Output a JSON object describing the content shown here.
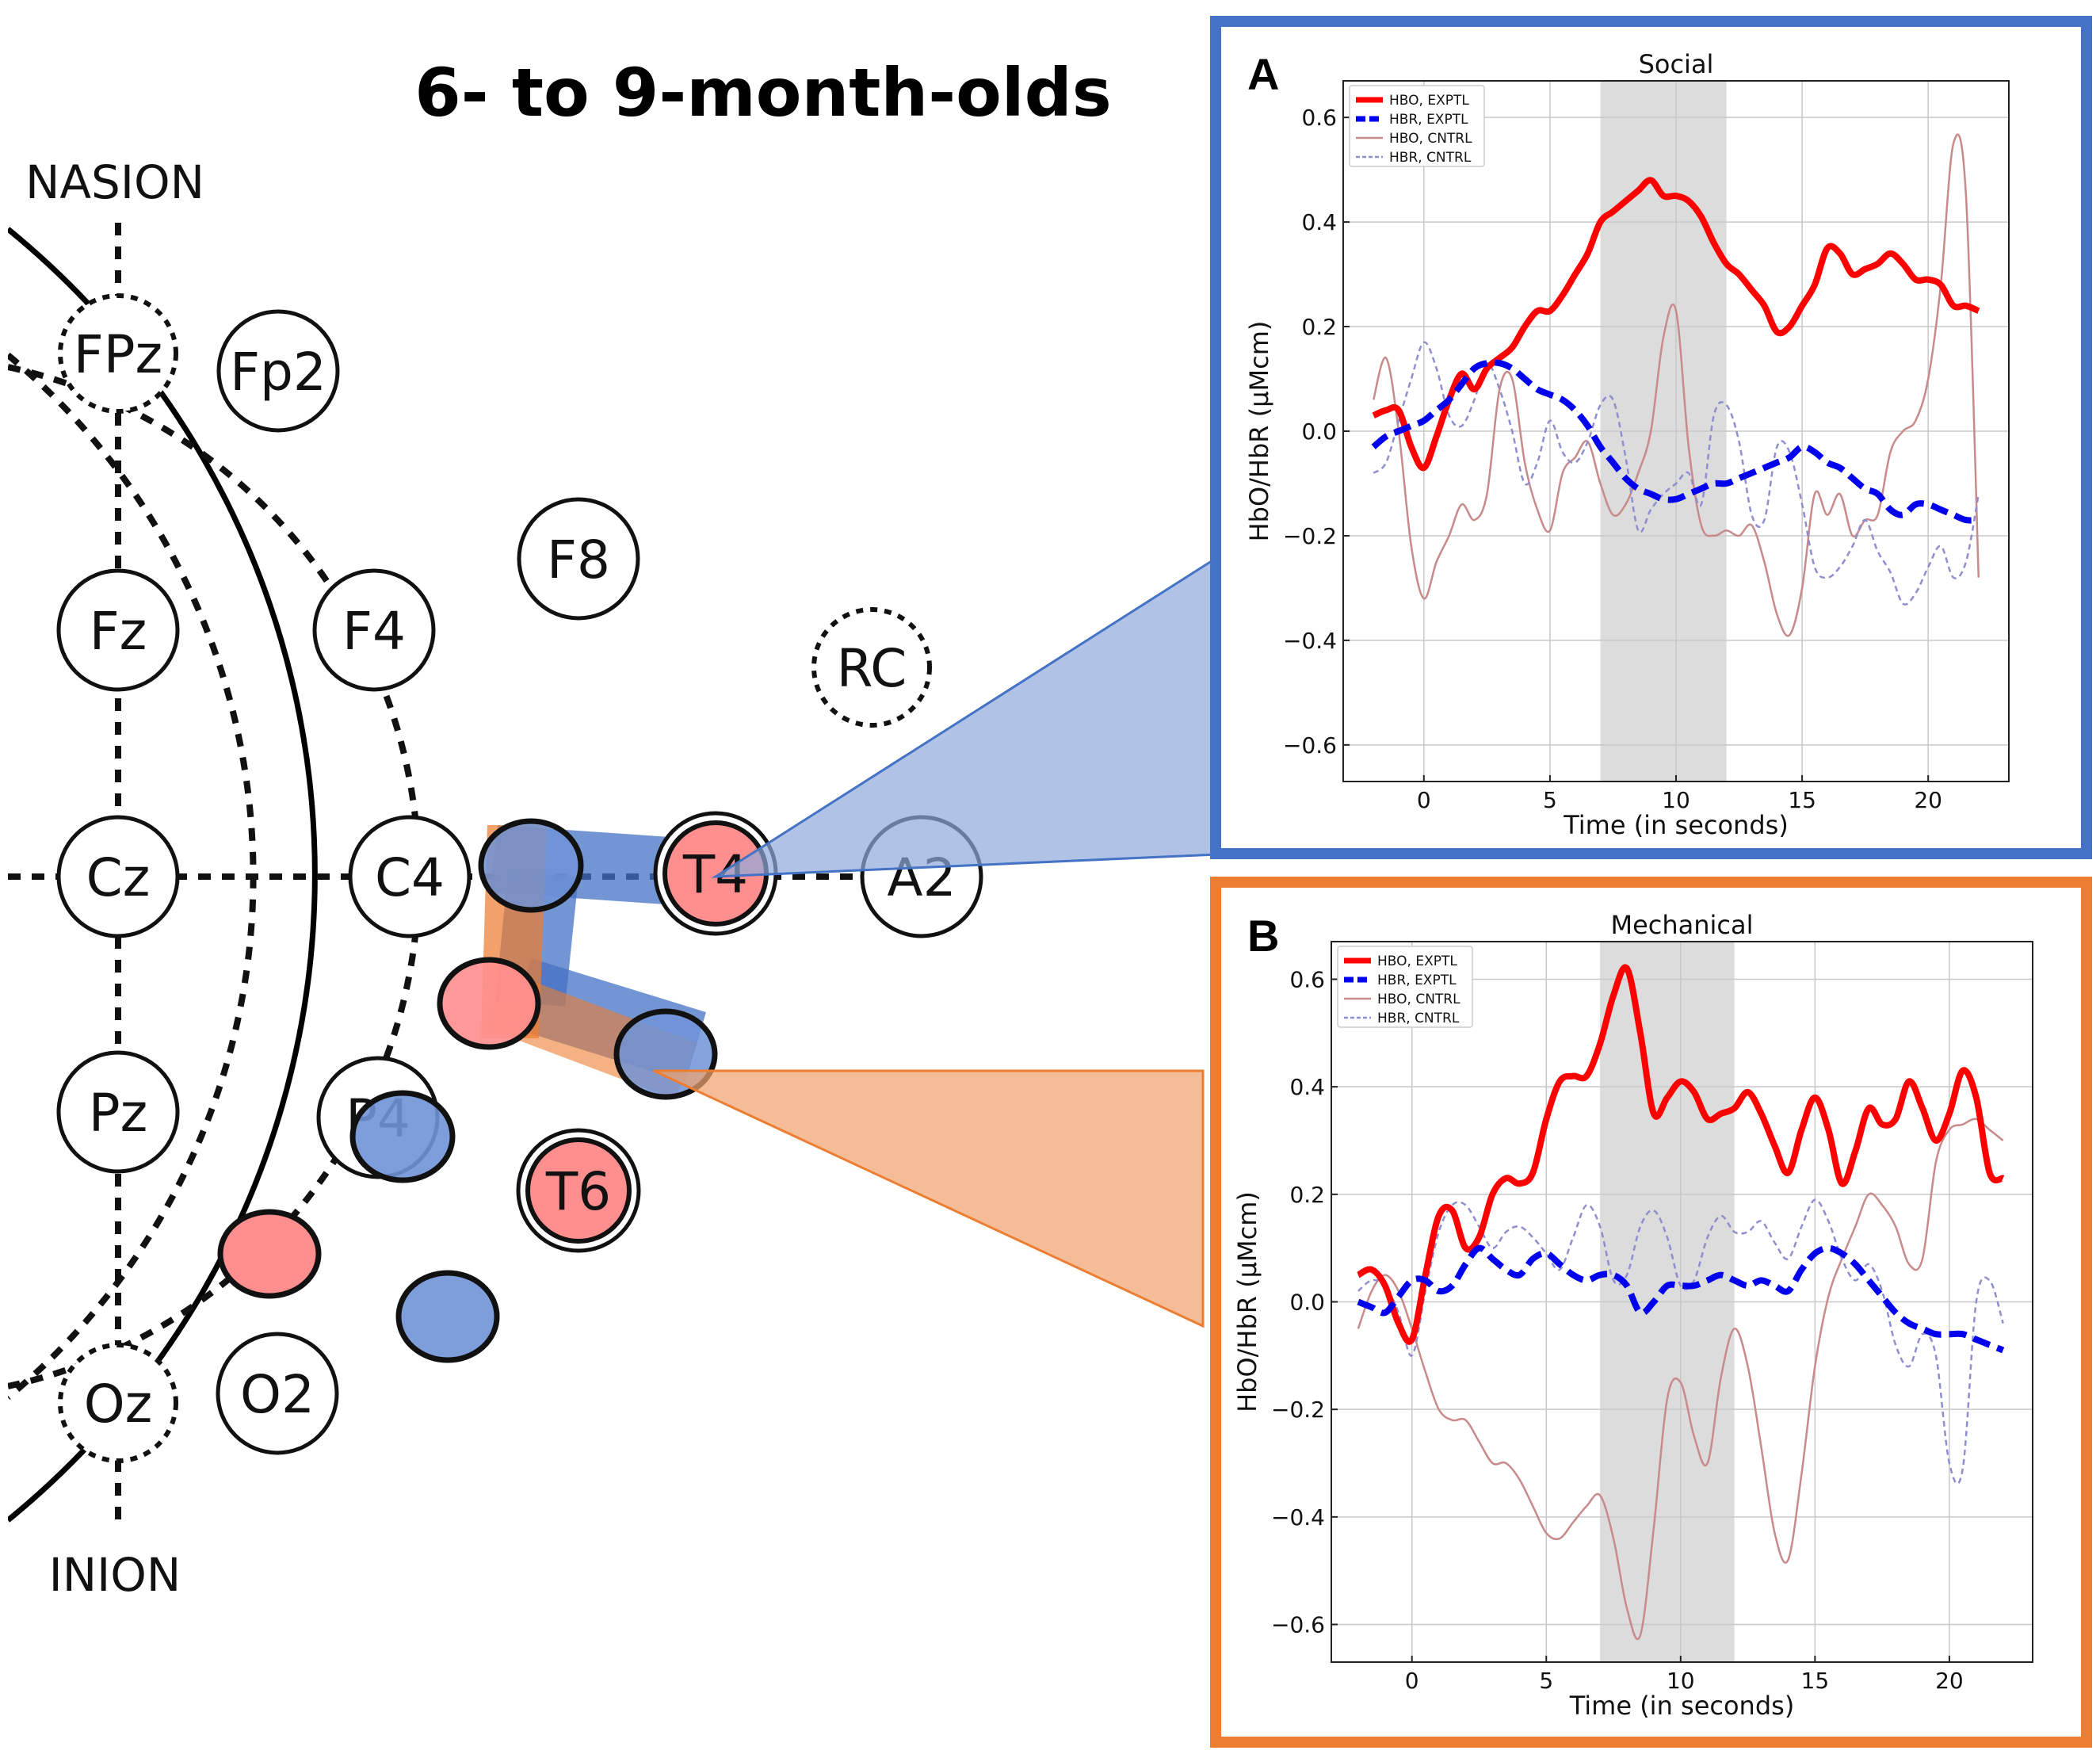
{
  "title": "6- to 9-month-olds",
  "head": {
    "nasion_label": "NASION",
    "inion_label": "INION",
    "electrodes": [
      {
        "id": "FPz",
        "label": "FPz",
        "dashed": true
      },
      {
        "id": "Fp2",
        "label": "Fp2",
        "dashed": false
      },
      {
        "id": "F8",
        "label": "F8",
        "dashed": false
      },
      {
        "id": "Fz",
        "label": "Fz",
        "dashed": false
      },
      {
        "id": "F4",
        "label": "F4",
        "dashed": false
      },
      {
        "id": "RC",
        "label": "RC",
        "dashed": true
      },
      {
        "id": "Cz",
        "label": "Cz",
        "dashed": false
      },
      {
        "id": "C4",
        "label": "C4",
        "dashed": false
      },
      {
        "id": "T4",
        "label": "T4",
        "dashed": false
      },
      {
        "id": "A2",
        "label": "A2",
        "dashed": false
      },
      {
        "id": "Pz",
        "label": "Pz",
        "dashed": false
      },
      {
        "id": "P4",
        "label": "P4",
        "dashed": false
      },
      {
        "id": "T6",
        "label": "T6",
        "dashed": false
      },
      {
        "id": "Oz",
        "label": "Oz",
        "dashed": true
      },
      {
        "id": "O2",
        "label": "O2",
        "dashed": false
      }
    ]
  },
  "colors": {
    "panel_a_border": "#4472c4",
    "panel_b_border": "#ed7d31",
    "hbo": "#ff0000",
    "hbr": "#0000ee",
    "hbo_ctrl": "#c88a8a",
    "hbr_ctrl": "#8f8fd0",
    "shade": "#dcdcdc",
    "source": "#ff8f8f",
    "detector": "#6f93d6"
  },
  "chart_data": [
    {
      "panel": "A",
      "type": "line",
      "title": "Social",
      "xlabel": "Time (in seconds)",
      "ylabel": "HbO/HbR (μMcm)",
      "xlim": [
        -3.2,
        23.2
      ],
      "ylim": [
        -0.67,
        0.67
      ],
      "xticks": [
        0,
        5,
        10,
        15,
        20
      ],
      "yticks": [
        -0.6,
        -0.4,
        -0.2,
        0.0,
        0.2,
        0.4,
        0.6
      ],
      "ytick_labels": [
        "−0.6",
        "−0.4",
        "−0.2",
        "0.0",
        "0.2",
        "0.4",
        "0.6"
      ],
      "grid": true,
      "shaded_interval": [
        7,
        12
      ],
      "legend_position": "top-left",
      "series": [
        {
          "name": "HBO, EXPTL",
          "style": "solid-thick",
          "x": [
            -2,
            -1.5,
            -1,
            -0.5,
            0,
            0.5,
            1,
            1.5,
            2,
            2.5,
            3,
            3.5,
            4,
            4.5,
            5,
            5.5,
            6,
            6.5,
            7,
            7.5,
            8,
            8.5,
            9,
            9.5,
            10,
            10.5,
            11,
            11.5,
            12,
            12.5,
            13,
            13.5,
            14,
            14.5,
            15,
            15.5,
            16,
            16.5,
            17,
            17.5,
            18,
            18.5,
            19,
            19.5,
            20,
            20.5,
            21,
            21.5,
            22
          ],
          "y": [
            0.03,
            0.04,
            0.04,
            -0.03,
            -0.07,
            -0.01,
            0.06,
            0.11,
            0.08,
            0.12,
            0.14,
            0.16,
            0.2,
            0.23,
            0.23,
            0.26,
            0.3,
            0.34,
            0.4,
            0.42,
            0.44,
            0.46,
            0.48,
            0.45,
            0.45,
            0.44,
            0.41,
            0.36,
            0.32,
            0.3,
            0.27,
            0.24,
            0.19,
            0.2,
            0.24,
            0.28,
            0.35,
            0.34,
            0.3,
            0.31,
            0.32,
            0.34,
            0.32,
            0.29,
            0.29,
            0.28,
            0.24,
            0.24,
            0.23
          ]
        },
        {
          "name": "HBR, EXPTL",
          "style": "dashed-thick",
          "x": [
            -2,
            -1.5,
            -1,
            -0.5,
            0,
            0.5,
            1,
            1.5,
            2,
            2.5,
            3,
            3.5,
            4,
            4.5,
            5,
            5.5,
            6,
            6.5,
            7,
            7.5,
            8,
            8.5,
            9,
            9.5,
            10,
            10.5,
            11,
            11.5,
            12,
            12.5,
            13,
            13.5,
            14,
            14.5,
            15,
            15.5,
            16,
            16.5,
            17,
            17.5,
            18,
            18.5,
            19,
            19.5,
            20,
            20.5,
            21,
            21.5,
            22
          ],
          "y": [
            -0.03,
            -0.01,
            0.0,
            0.01,
            0.02,
            0.04,
            0.06,
            0.09,
            0.12,
            0.13,
            0.13,
            0.12,
            0.1,
            0.08,
            0.07,
            0.06,
            0.04,
            0.01,
            -0.03,
            -0.06,
            -0.09,
            -0.11,
            -0.12,
            -0.13,
            -0.13,
            -0.12,
            -0.11,
            -0.1,
            -0.1,
            -0.09,
            -0.08,
            -0.07,
            -0.06,
            -0.05,
            -0.03,
            -0.04,
            -0.06,
            -0.07,
            -0.09,
            -0.11,
            -0.12,
            -0.15,
            -0.16,
            -0.14,
            -0.14,
            -0.15,
            -0.16,
            -0.17,
            -0.17
          ]
        },
        {
          "name": "HBO, CNTRL",
          "style": "solid-thin",
          "x": [
            -2,
            -1.5,
            -1,
            -0.5,
            0,
            0.5,
            1,
            1.5,
            2,
            2.5,
            3,
            3.5,
            4,
            4.5,
            5,
            5.5,
            6,
            6.5,
            7,
            7.5,
            8,
            8.5,
            9,
            9.5,
            10,
            10.5,
            11,
            11.5,
            12,
            12.5,
            13,
            13.5,
            14,
            14.5,
            15,
            15.5,
            16,
            16.5,
            17,
            17.5,
            18,
            18.5,
            19,
            19.5,
            20,
            20.5,
            21,
            21.5,
            22
          ],
          "y": [
            0.06,
            0.14,
            0.0,
            -0.22,
            -0.32,
            -0.25,
            -0.2,
            -0.14,
            -0.17,
            -0.12,
            0.08,
            0.1,
            -0.06,
            -0.15,
            -0.19,
            -0.08,
            -0.05,
            -0.02,
            -0.1,
            -0.16,
            -0.14,
            -0.08,
            0.0,
            0.18,
            0.23,
            -0.03,
            -0.18,
            -0.2,
            -0.19,
            -0.2,
            -0.18,
            -0.25,
            -0.35,
            -0.39,
            -0.3,
            -0.12,
            -0.16,
            -0.12,
            -0.2,
            -0.17,
            -0.16,
            -0.04,
            0.0,
            0.02,
            0.1,
            0.28,
            0.55,
            0.45,
            -0.28
          ]
        },
        {
          "name": "HBR, CNTRL",
          "style": "dashed-thin",
          "x": [
            -2,
            -1.5,
            -1,
            -0.5,
            0,
            0.5,
            1,
            1.5,
            2,
            2.5,
            3,
            3.5,
            4,
            4.5,
            5,
            5.5,
            6,
            6.5,
            7,
            7.5,
            8,
            8.5,
            9,
            9.5,
            10,
            10.5,
            11,
            11.5,
            12,
            12.5,
            13,
            13.5,
            14,
            14.5,
            15,
            15.5,
            16,
            16.5,
            17,
            17.5,
            18,
            18.5,
            19,
            19.5,
            20,
            20.5,
            21,
            21.5,
            22
          ],
          "y": [
            -0.08,
            -0.06,
            0.02,
            0.1,
            0.17,
            0.12,
            0.03,
            0.01,
            0.06,
            0.13,
            0.08,
            0.0,
            -0.1,
            -0.06,
            0.02,
            -0.04,
            -0.06,
            -0.02,
            0.05,
            0.06,
            -0.05,
            -0.19,
            -0.15,
            -0.12,
            -0.1,
            -0.08,
            -0.14,
            0.03,
            0.05,
            -0.02,
            -0.16,
            -0.17,
            -0.03,
            -0.04,
            -0.14,
            -0.26,
            -0.28,
            -0.26,
            -0.22,
            -0.17,
            -0.23,
            -0.27,
            -0.33,
            -0.31,
            -0.26,
            -0.22,
            -0.28,
            -0.25,
            -0.12
          ]
        }
      ]
    },
    {
      "panel": "B",
      "type": "line",
      "title": "Mechanical",
      "xlabel": "Time (in seconds)",
      "ylabel": "HbO/HbR (μMcm)",
      "xlim": [
        -3.0,
        23.1
      ],
      "ylim": [
        -0.67,
        0.67
      ],
      "xticks": [
        0,
        5,
        10,
        15,
        20
      ],
      "yticks": [
        -0.6,
        -0.4,
        -0.2,
        0.0,
        0.2,
        0.4,
        0.6
      ],
      "ytick_labels": [
        "−0.6",
        "−0.4",
        "−0.2",
        "0.0",
        "0.2",
        "0.4",
        "0.6"
      ],
      "grid": true,
      "shaded_interval": [
        7,
        12
      ],
      "legend_position": "top-left",
      "series": [
        {
          "name": "HBO, EXPTL",
          "style": "solid-thick",
          "x": [
            -2,
            -1.5,
            -1,
            -0.5,
            0,
            0.5,
            1,
            1.5,
            2,
            2.5,
            3,
            3.5,
            4,
            4.5,
            5,
            5.5,
            6,
            6.5,
            7,
            7.5,
            8,
            8.5,
            9,
            9.5,
            10,
            10.5,
            11,
            11.5,
            12,
            12.5,
            13,
            13.5,
            14,
            14.5,
            15,
            15.5,
            16,
            16.5,
            17,
            17.5,
            18,
            18.5,
            19,
            19.5,
            20,
            20.5,
            21,
            21.5,
            22
          ],
          "y": [
            0.05,
            0.06,
            0.03,
            -0.04,
            -0.07,
            0.05,
            0.16,
            0.17,
            0.1,
            0.12,
            0.2,
            0.23,
            0.22,
            0.24,
            0.34,
            0.41,
            0.42,
            0.42,
            0.48,
            0.57,
            0.62,
            0.5,
            0.35,
            0.38,
            0.41,
            0.39,
            0.34,
            0.35,
            0.36,
            0.39,
            0.35,
            0.29,
            0.24,
            0.32,
            0.38,
            0.32,
            0.22,
            0.28,
            0.36,
            0.33,
            0.34,
            0.41,
            0.36,
            0.3,
            0.35,
            0.43,
            0.38,
            0.24,
            0.23
          ]
        },
        {
          "name": "HBR, EXPTL",
          "style": "dashed-thick",
          "x": [
            -2,
            -1.5,
            -1,
            -0.5,
            0,
            0.5,
            1,
            1.5,
            2,
            2.5,
            3,
            3.5,
            4,
            4.5,
            5,
            5.5,
            6,
            6.5,
            7,
            7.5,
            8,
            8.5,
            9,
            9.5,
            10,
            10.5,
            11,
            11.5,
            12,
            12.5,
            13,
            13.5,
            14,
            14.5,
            15,
            15.5,
            16,
            16.5,
            17,
            17.5,
            18,
            18.5,
            19,
            19.5,
            20,
            20.5,
            21,
            21.5,
            22
          ],
          "y": [
            0.0,
            -0.01,
            -0.02,
            0.01,
            0.04,
            0.04,
            0.02,
            0.03,
            0.07,
            0.1,
            0.08,
            0.06,
            0.05,
            0.08,
            0.09,
            0.07,
            0.05,
            0.04,
            0.05,
            0.05,
            0.03,
            -0.02,
            0.0,
            0.03,
            0.03,
            0.03,
            0.04,
            0.05,
            0.04,
            0.03,
            0.04,
            0.03,
            0.02,
            0.06,
            0.09,
            0.1,
            0.09,
            0.07,
            0.04,
            0.01,
            -0.02,
            -0.04,
            -0.05,
            -0.06,
            -0.06,
            -0.06,
            -0.07,
            -0.08,
            -0.09
          ]
        },
        {
          "name": "HBO, CNTRL",
          "style": "solid-thin",
          "x": [
            -2,
            -1.5,
            -1,
            -0.5,
            0,
            0.5,
            1,
            1.5,
            2,
            2.5,
            3,
            3.5,
            4,
            4.5,
            5,
            5.5,
            6,
            6.5,
            7,
            7.5,
            8,
            8.5,
            9,
            9.5,
            10,
            10.5,
            11,
            11.5,
            12,
            12.5,
            13,
            13.5,
            14,
            14.5,
            15,
            15.5,
            16,
            16.5,
            17,
            17.5,
            18,
            18.5,
            19,
            19.5,
            20,
            20.5,
            21,
            21.5,
            22
          ],
          "y": [
            -0.05,
            0.02,
            0.05,
            0.02,
            -0.05,
            -0.13,
            -0.2,
            -0.22,
            -0.22,
            -0.26,
            -0.3,
            -0.3,
            -0.33,
            -0.38,
            -0.43,
            -0.44,
            -0.41,
            -0.38,
            -0.36,
            -0.44,
            -0.57,
            -0.62,
            -0.42,
            -0.18,
            -0.15,
            -0.25,
            -0.3,
            -0.14,
            -0.05,
            -0.12,
            -0.27,
            -0.43,
            -0.48,
            -0.32,
            -0.12,
            0.01,
            0.08,
            0.14,
            0.2,
            0.18,
            0.14,
            0.07,
            0.08,
            0.26,
            0.32,
            0.33,
            0.34,
            0.32,
            0.3
          ]
        },
        {
          "name": "HBR, CNTRL",
          "style": "dashed-thin",
          "x": [
            -2,
            -1.5,
            -1,
            -0.5,
            0,
            0.5,
            1,
            1.5,
            2,
            2.5,
            3,
            3.5,
            4,
            4.5,
            5,
            5.5,
            6,
            6.5,
            7,
            7.5,
            8,
            8.5,
            9,
            9.5,
            10,
            10.5,
            11,
            11.5,
            12,
            12.5,
            13,
            13.5,
            14,
            14.5,
            15,
            15.5,
            16,
            16.5,
            17,
            17.5,
            18,
            18.5,
            19,
            19.5,
            20,
            20.5,
            21,
            21.5,
            22
          ],
          "y": [
            0.02,
            0.04,
            0.03,
            -0.02,
            -0.1,
            0.02,
            0.13,
            0.18,
            0.18,
            0.14,
            0.1,
            0.13,
            0.14,
            0.12,
            0.09,
            0.06,
            0.12,
            0.18,
            0.14,
            0.04,
            0.05,
            0.14,
            0.17,
            0.12,
            0.03,
            0.04,
            0.12,
            0.16,
            0.13,
            0.13,
            0.15,
            0.11,
            0.08,
            0.14,
            0.19,
            0.15,
            0.08,
            0.04,
            0.07,
            0.02,
            -0.08,
            -0.12,
            -0.06,
            -0.1,
            -0.3,
            -0.31,
            0.0,
            0.04,
            -0.04
          ]
        }
      ]
    }
  ]
}
